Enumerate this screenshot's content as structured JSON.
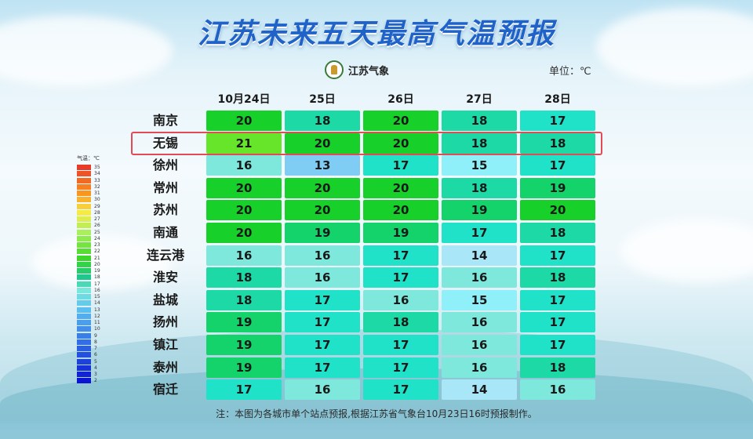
{
  "title": "江苏未来五天最高气温预报",
  "logo": {
    "icon": "meteorological-bureau-emblem",
    "text": "江苏气象"
  },
  "unit_label": "单位：℃",
  "footnote": "注：本图为各城市单个站点预报,根据江苏省气象台10月23日16时预报制作。",
  "highlight_city": "无锡",
  "chart_data": {
    "type": "table",
    "title": "江苏未来五天最高气温预报",
    "unit": "℃",
    "columns": [
      "10月24日",
      "25日",
      "26日",
      "27日",
      "28日"
    ],
    "rows": [
      {
        "city": "南京",
        "values": [
          20,
          18,
          20,
          18,
          17
        ]
      },
      {
        "city": "无锡",
        "values": [
          21,
          20,
          20,
          18,
          18
        ]
      },
      {
        "city": "徐州",
        "values": [
          16,
          13,
          17,
          15,
          17
        ]
      },
      {
        "city": "常州",
        "values": [
          20,
          20,
          20,
          18,
          19
        ]
      },
      {
        "city": "苏州",
        "values": [
          20,
          20,
          20,
          19,
          20
        ]
      },
      {
        "city": "南通",
        "values": [
          20,
          19,
          19,
          17,
          18
        ]
      },
      {
        "city": "连云港",
        "values": [
          16,
          16,
          17,
          14,
          17
        ]
      },
      {
        "city": "淮安",
        "values": [
          18,
          16,
          17,
          16,
          18
        ]
      },
      {
        "city": "盐城",
        "values": [
          18,
          17,
          16,
          15,
          17
        ]
      },
      {
        "city": "扬州",
        "values": [
          19,
          17,
          18,
          16,
          17
        ]
      },
      {
        "city": "镇江",
        "values": [
          19,
          17,
          17,
          16,
          17
        ]
      },
      {
        "city": "泰州",
        "values": [
          19,
          17,
          17,
          16,
          18
        ]
      },
      {
        "city": "宿迁",
        "values": [
          17,
          16,
          17,
          14,
          16
        ]
      }
    ],
    "legend": {
      "title": "气温：℃",
      "ticks": [
        35,
        34,
        33,
        32,
        31,
        30,
        29,
        28,
        27,
        26,
        25,
        24,
        23,
        22,
        21,
        20,
        19,
        18,
        17,
        16,
        15,
        14,
        13,
        12,
        11,
        10,
        9,
        8,
        7,
        6,
        5,
        4,
        3,
        2
      ]
    },
    "color_scale": {
      "13": "#7fcdf5",
      "14": "#a8e6f8",
      "15": "#8ff0fa",
      "16": "#7ee8dc",
      "17": "#20e2c8",
      "18": "#1dd9a6",
      "19": "#14d36a",
      "20": "#17d02a",
      "21": "#66e52a"
    }
  }
}
